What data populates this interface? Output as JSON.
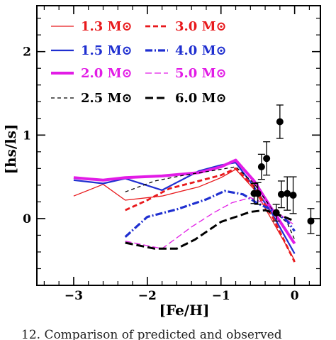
{
  "chart_data": {
    "type": "line",
    "xlabel": "[Fe/H]",
    "ylabel": "[hs/ls]",
    "xlim": [
      -3.5,
      0.35
    ],
    "ylim": [
      -0.8,
      2.55
    ],
    "x_ticks": [
      "−3",
      "−2",
      "−1",
      "0"
    ],
    "y_ticks": [
      "0",
      "1",
      "2"
    ],
    "grid": false,
    "legend_position": "top-left",
    "series": [
      {
        "name": "1.3",
        "unit": "M⊙",
        "color": "#e8191c",
        "width": 1.3,
        "dash": "",
        "x": [
          -3.0,
          -2.6,
          -2.3,
          -1.8,
          -1.3,
          -1.0,
          -0.8,
          -0.55,
          -0.3,
          0.0
        ],
        "y": [
          0.27,
          0.41,
          0.22,
          0.27,
          0.38,
          0.49,
          0.59,
          0.35,
          -0.03,
          -0.5
        ]
      },
      {
        "name": "1.5",
        "unit": "M⊙",
        "color": "#1f2fd0",
        "width": 2.2,
        "dash": "",
        "x": [
          -3.0,
          -2.6,
          -2.3,
          -1.8,
          -1.3,
          -1.0,
          -0.8,
          -0.55,
          -0.3,
          0.0
        ],
        "y": [
          0.46,
          0.42,
          0.48,
          0.34,
          0.57,
          0.64,
          0.67,
          0.38,
          0.05,
          -0.42
        ]
      },
      {
        "name": "2.0",
        "unit": "M⊙",
        "color": "#e21ce6",
        "width": 4.0,
        "dash": "",
        "x": [
          -3.0,
          -2.6,
          -2.3,
          -1.8,
          -1.3,
          -1.0,
          -0.8,
          -0.55,
          -0.3,
          0.0
        ],
        "y": [
          0.49,
          0.46,
          0.49,
          0.51,
          0.55,
          0.62,
          0.7,
          0.45,
          0.1,
          -0.3
        ]
      },
      {
        "name": "2.5",
        "unit": "M⊙",
        "color": "#000000",
        "width": 1.3,
        "dash": "5,4",
        "x": [
          -2.3,
          -1.9,
          -1.5,
          -1.0,
          -0.8,
          -0.55,
          -0.3,
          -0.1,
          0.0
        ],
        "y": [
          0.32,
          0.45,
          0.52,
          0.59,
          0.62,
          0.42,
          0.1,
          -0.05,
          -0.25
        ]
      },
      {
        "name": "3.0",
        "unit": "M⊙",
        "color": "#e8191c",
        "width": 2.8,
        "dash": "7,4",
        "x": [
          -2.3,
          -2.0,
          -1.7,
          -1.3,
          -1.0,
          -0.8,
          -0.55,
          -0.3,
          0.0
        ],
        "y": [
          0.1,
          0.22,
          0.36,
          0.45,
          0.52,
          0.6,
          0.38,
          0.02,
          -0.52
        ]
      },
      {
        "name": "4.0",
        "unit": "M⊙",
        "color": "#1f2fd0",
        "width": 3.2,
        "dash": "10,3,2,3",
        "x": [
          -2.3,
          -2.0,
          -1.6,
          -1.2,
          -0.95,
          -0.7,
          -0.5,
          -0.3,
          -0.1,
          0.0
        ],
        "y": [
          -0.22,
          0.02,
          0.11,
          0.23,
          0.33,
          0.29,
          0.18,
          0.1,
          -0.03,
          -0.15
        ]
      },
      {
        "name": "5.0",
        "unit": "M⊙",
        "color": "#e21ce6",
        "width": 1.3,
        "dash": "9,4",
        "x": [
          -2.3,
          -1.8,
          -1.4,
          -1.1,
          -0.85,
          -0.6,
          -0.4,
          -0.2,
          0.0
        ],
        "y": [
          -0.27,
          -0.36,
          -0.1,
          0.07,
          0.19,
          0.25,
          0.18,
          0.05,
          -0.08
        ]
      },
      {
        "name": "6.0",
        "unit": "M⊙",
        "color": "#000000",
        "width": 3.0,
        "dash": "11,5",
        "x": [
          -2.3,
          -1.9,
          -1.6,
          -1.35,
          -1.0,
          -0.6,
          -0.4,
          -0.2,
          0.0
        ],
        "y": [
          -0.29,
          -0.36,
          -0.36,
          -0.25,
          -0.04,
          0.08,
          0.1,
          0.04,
          -0.03
        ]
      }
    ],
    "observations": {
      "marker": "filled-circle",
      "x": [
        -0.55,
        -0.5,
        -0.45,
        -0.38,
        -0.25,
        -0.2,
        -0.18,
        -0.1,
        -0.02,
        0.22
      ],
      "y": [
        0.3,
        0.3,
        0.62,
        0.72,
        0.07,
        1.16,
        0.29,
        0.3,
        0.28,
        -0.03
      ],
      "err": [
        0.12,
        0.13,
        0.15,
        0.2,
        0.1,
        0.2,
        0.16,
        0.2,
        0.22,
        0.15
      ]
    }
  },
  "caption": "12. Comparison of predicted and observed"
}
